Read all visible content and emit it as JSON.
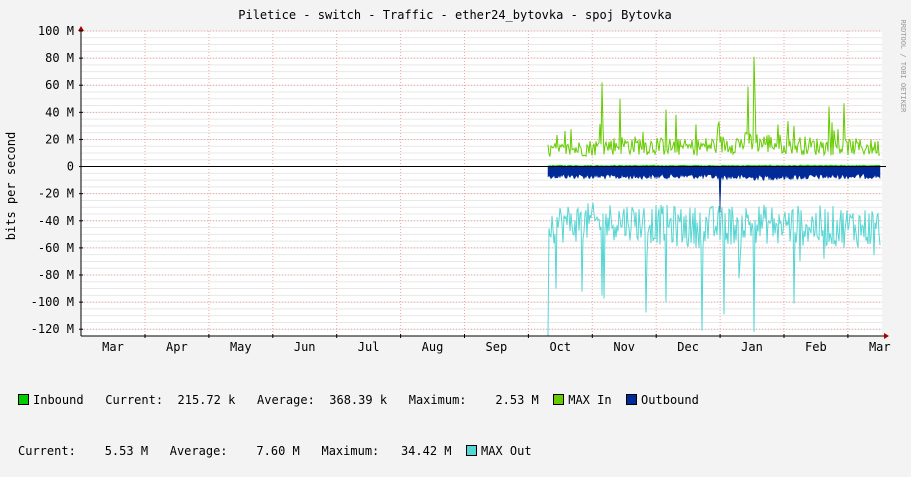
{
  "chart_data": {
    "type": "area",
    "title": "Piletice - switch - Traffic - ether24_bytovka - spoj Bytovka",
    "ylabel": "bits per second",
    "xlabel": "",
    "ylim": [
      -125000000,
      100000000
    ],
    "yticks": [
      {
        "value": 100000000,
        "label": "100 M"
      },
      {
        "value": 80000000,
        "label": "80 M"
      },
      {
        "value": 60000000,
        "label": "60 M"
      },
      {
        "value": 40000000,
        "label": "40 M"
      },
      {
        "value": 20000000,
        "label": "20 M"
      },
      {
        "value": 0,
        "label": "0"
      },
      {
        "value": -20000000,
        "label": "-20 M"
      },
      {
        "value": -40000000,
        "label": "-40 M"
      },
      {
        "value": -60000000,
        "label": "-60 M"
      },
      {
        "value": -80000000,
        "label": "-80 M"
      },
      {
        "value": -100000000,
        "label": "-100 M"
      },
      {
        "value": -120000000,
        "label": "-120 M"
      }
    ],
    "x_month_labels": [
      "Mar",
      "Apr",
      "May",
      "Jun",
      "Jul",
      "Aug",
      "Sep",
      "Oct",
      "Nov",
      "Dec",
      "Jan",
      "Feb",
      "Mar"
    ],
    "grid": true,
    "series": [
      {
        "name": "Inbound",
        "color": "#00cc00",
        "kind": "area",
        "approx_level": 800000
      },
      {
        "name": "MAX In",
        "color": "#66cc00",
        "kind": "line",
        "months": [
          "Oct",
          "Nov",
          "Dec",
          "Jan",
          "Feb",
          "Mar"
        ],
        "values": [
          12000000,
          16000000,
          14000000,
          18000000,
          15000000,
          14000000
        ],
        "peaks": [
          {
            "month": "Nov",
            "value": 62000000
          },
          {
            "month": "Nov",
            "value": 50000000
          },
          {
            "month": "Dec",
            "value": 42000000
          },
          {
            "month": "Jan",
            "value": 81000000
          },
          {
            "month": "Jan",
            "value": 59000000
          },
          {
            "month": "Feb",
            "value": 30000000
          }
        ]
      },
      {
        "name": "Outbound",
        "color": "#002a97",
        "kind": "area",
        "months": [
          "Oct",
          "Nov",
          "Dec",
          "Jan",
          "Feb",
          "Mar"
        ],
        "values": [
          -7000000,
          -7500000,
          -7000000,
          -8000000,
          -7500000,
          -7000000
        ],
        "peaks": [
          {
            "month": "Jan",
            "value": -34000000
          }
        ]
      },
      {
        "name": "MAX Out",
        "color": "#55d6d3",
        "kind": "line",
        "months": [
          "Oct",
          "Nov",
          "Dec",
          "Jan",
          "Feb",
          "Mar"
        ],
        "values": [
          -42000000,
          -40000000,
          -45000000,
          -42000000,
          -44000000,
          -45000000
        ],
        "peaks": [
          {
            "month": "Oct",
            "value": -125000000
          },
          {
            "month": "Oct",
            "value": -90000000
          },
          {
            "month": "Nov",
            "value": -95000000
          },
          {
            "month": "Dec",
            "value": -100000000
          },
          {
            "month": "Jan",
            "value": -122000000
          },
          {
            "month": "Feb",
            "value": -101000000
          }
        ]
      }
    ]
  },
  "watermark": "RRDTOOL / TOBI OETIKER",
  "legend": {
    "inbound": {
      "name": "Inbound",
      "color": "#00cc00",
      "current": "Current:  215.72 k",
      "average": "Average:  368.39 k",
      "maximum": "Maximum:    2.53 M"
    },
    "max_in": {
      "name": "MAX In",
      "color": "#66cc00"
    },
    "outbound": {
      "name": "Outbound",
      "color": "#002a97",
      "current": "Current:    5.53 M",
      "average": "Average:    7.60 M",
      "maximum": "Maximum:   34.42 M"
    },
    "max_out": {
      "name": "MAX Out",
      "color": "#55d6d3"
    }
  }
}
